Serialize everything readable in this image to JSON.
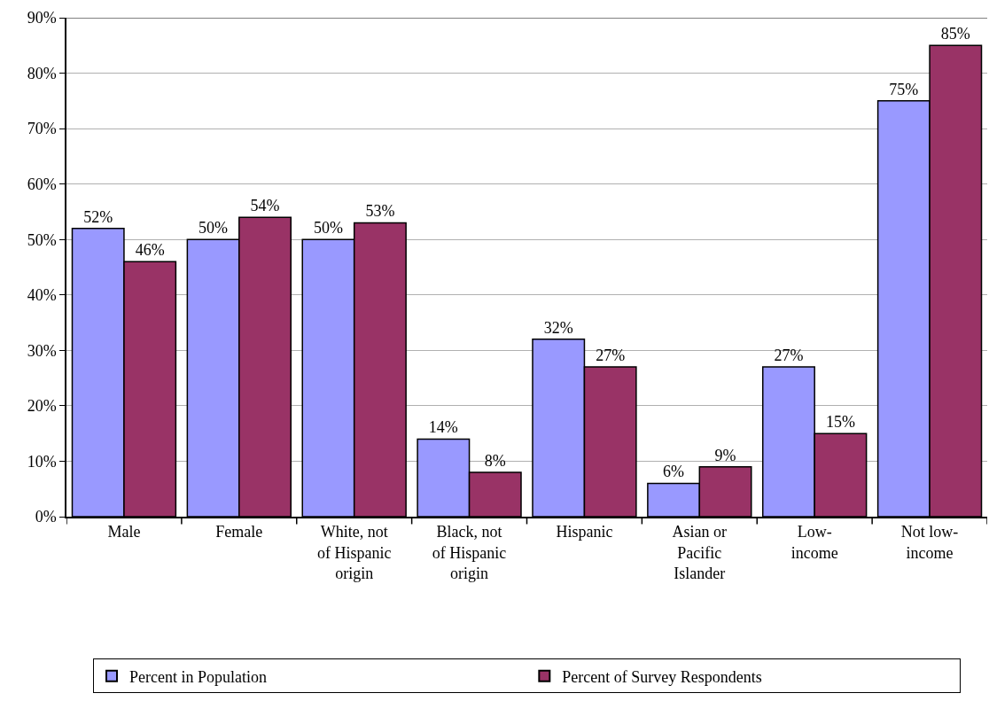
{
  "chart_data": {
    "type": "bar",
    "categories": [
      "Male",
      "Female",
      "White, not\nof Hispanic\norigin",
      "Black, not\nof Hispanic\norigin",
      "Hispanic",
      "Asian or\nPacific\nIslander",
      "Low-\nincome",
      "Not low-\nincome"
    ],
    "series": [
      {
        "name": "Percent in Population",
        "color": "#9999ff",
        "values": [
          52,
          50,
          50,
          14,
          32,
          6,
          27,
          75
        ],
        "value_labels": [
          "52%",
          "50%",
          "50%",
          "14%",
          "32%",
          "6%",
          "27%",
          "75%"
        ]
      },
      {
        "name": "Percent of Survey Respondents",
        "color": "#993366",
        "values": [
          46,
          54,
          53,
          8,
          27,
          9,
          15,
          85
        ],
        "value_labels": [
          "46%",
          "54%",
          "53%",
          "8%",
          "27%",
          "9%",
          "15%",
          "85%"
        ]
      }
    ],
    "ylim": [
      0,
      90
    ],
    "yticks": [
      {
        "value": 0,
        "label": "0%"
      },
      {
        "value": 10,
        "label": "10%"
      },
      {
        "value": 20,
        "label": "20%"
      },
      {
        "value": 30,
        "label": "30%"
      },
      {
        "value": 40,
        "label": "40%"
      },
      {
        "value": 50,
        "label": "50%"
      },
      {
        "value": 60,
        "label": "60%"
      },
      {
        "value": 70,
        "label": "70%"
      },
      {
        "value": 80,
        "label": "80%"
      },
      {
        "value": 90,
        "label": "90%"
      }
    ],
    "grid": "y",
    "legend": "bottom"
  }
}
